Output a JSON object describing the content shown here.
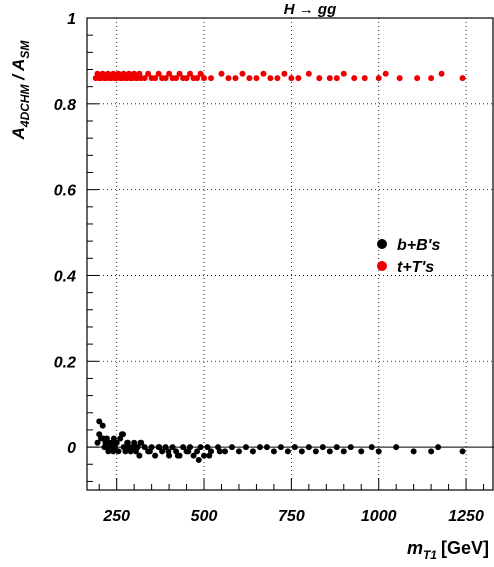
{
  "chart_data": {
    "type": "scatter",
    "title": "H → gg",
    "xlabel": "m_T1 [GeV]",
    "xlabel_main": "m",
    "xlabel_sub": "T1",
    "xlabel_unit": "[GeV]",
    "ylabel_main": "A",
    "ylabel_sub1": "4DCHM",
    "ylabel_sep": " / A",
    "ylabel_sub2": "SM",
    "xlim": [
      165,
      1330
    ],
    "ylim": [
      -0.1,
      1.0
    ],
    "xticks": [
      250,
      500,
      750,
      1000,
      1250
    ],
    "xtick_labels": [
      "250",
      "500",
      "750",
      "1000",
      "1250"
    ],
    "yticks": [
      0,
      0.2,
      0.4,
      0.6,
      0.8,
      1
    ],
    "ytick_labels": [
      "0",
      "0.2",
      "0.4",
      "0.6",
      "0.8",
      "1"
    ],
    "grid": true,
    "grid_style": "dotted",
    "reference_line_y": 0,
    "legend_position": "right-center",
    "series": [
      {
        "name": "b+B's",
        "color": "#000000",
        "x": [
          195,
          200,
          205,
          210,
          215,
          218,
          222,
          226,
          230,
          235,
          240,
          245,
          250,
          255,
          260,
          265,
          270,
          275,
          280,
          285,
          290,
          295,
          300,
          305,
          310,
          315,
          320,
          330,
          340,
          350,
          360,
          370,
          380,
          390,
          400,
          410,
          420,
          430,
          440,
          450,
          460,
          470,
          480,
          490,
          500,
          510,
          520,
          540,
          560,
          580,
          600,
          620,
          640,
          660,
          680,
          700,
          720,
          740,
          760,
          780,
          800,
          820,
          840,
          860,
          880,
          900,
          920,
          950,
          980,
          1000,
          1050,
          1100,
          1150,
          1170,
          1240,
          200,
          212,
          228,
          242,
          268,
          282,
          298,
          318,
          345,
          372,
          398,
          425,
          455,
          485,
          515,
          545
        ],
        "y": [
          0.01,
          0.06,
          0.02,
          0.05,
          0.0,
          0.01,
          0.02,
          -0.01,
          0.0,
          0.01,
          -0.01,
          0.0,
          0.01,
          -0.01,
          0.02,
          0.03,
          0.0,
          -0.01,
          0.01,
          0.0,
          -0.01,
          0.0,
          0.01,
          -0.01,
          0.0,
          -0.02,
          0.01,
          0.0,
          -0.01,
          0.0,
          -0.02,
          0.0,
          -0.01,
          0.0,
          -0.02,
          0.0,
          -0.01,
          -0.02,
          0.0,
          -0.01,
          0.0,
          -0.02,
          -0.01,
          0.0,
          -0.02,
          0.0,
          -0.01,
          0.0,
          -0.01,
          0.0,
          -0.01,
          0.0,
          -0.01,
          0.0,
          0.0,
          -0.01,
          0.0,
          -0.01,
          0.0,
          -0.01,
          0.0,
          -0.01,
          0.0,
          -0.01,
          0.0,
          -0.01,
          0.0,
          -0.01,
          0.0,
          -0.01,
          0.0,
          -0.01,
          -0.01,
          0.0,
          -0.01,
          0.03,
          0.02,
          0.01,
          0.02,
          0.03,
          0.01,
          0.0,
          0.01,
          -0.01,
          0.0,
          -0.01,
          -0.02,
          -0.01,
          -0.03,
          -0.02,
          -0.01
        ]
      },
      {
        "name": "t+T's",
        "color": "#ee0000",
        "x": [
          190,
          195,
          200,
          205,
          210,
          215,
          220,
          225,
          230,
          235,
          240,
          245,
          250,
          255,
          260,
          265,
          270,
          275,
          280,
          285,
          290,
          295,
          300,
          305,
          310,
          315,
          320,
          330,
          340,
          350,
          360,
          370,
          380,
          390,
          400,
          410,
          420,
          430,
          440,
          450,
          460,
          470,
          480,
          490,
          500,
          520,
          550,
          570,
          590,
          610,
          630,
          650,
          670,
          690,
          710,
          730,
          750,
          770,
          800,
          830,
          860,
          880,
          900,
          930,
          960,
          1000,
          1020,
          1060,
          1110,
          1150,
          1180,
          1240
        ],
        "y": [
          0.86,
          0.87,
          0.86,
          0.86,
          0.87,
          0.86,
          0.86,
          0.87,
          0.86,
          0.86,
          0.87,
          0.86,
          0.86,
          0.87,
          0.86,
          0.86,
          0.87,
          0.86,
          0.86,
          0.87,
          0.86,
          0.86,
          0.87,
          0.86,
          0.86,
          0.87,
          0.86,
          0.86,
          0.87,
          0.86,
          0.86,
          0.87,
          0.86,
          0.86,
          0.87,
          0.86,
          0.86,
          0.87,
          0.86,
          0.86,
          0.87,
          0.86,
          0.86,
          0.87,
          0.86,
          0.86,
          0.87,
          0.86,
          0.86,
          0.87,
          0.86,
          0.86,
          0.87,
          0.86,
          0.86,
          0.87,
          0.86,
          0.86,
          0.87,
          0.86,
          0.86,
          0.86,
          0.87,
          0.86,
          0.86,
          0.86,
          0.87,
          0.86,
          0.86,
          0.86,
          0.87,
          0.86
        ]
      }
    ]
  }
}
